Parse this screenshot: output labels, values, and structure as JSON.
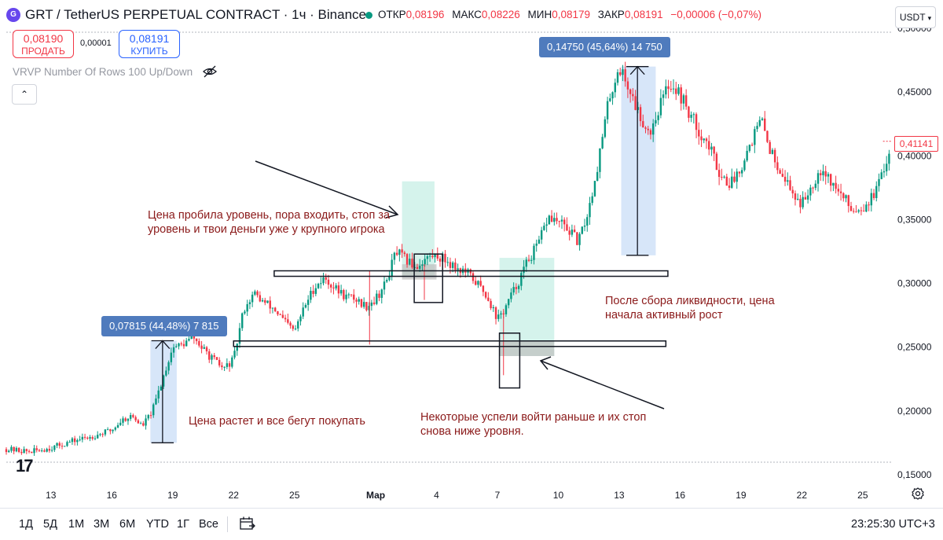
{
  "header": {
    "symbol_icon": "graph-token-icon",
    "title": "GRT / TetherUS PERPETUAL CONTRACT · 1ч · Binance",
    "ohlc": [
      {
        "label": "ОТКР",
        "value": "0,08196"
      },
      {
        "label": "МАКС",
        "value": "0,08226"
      },
      {
        "label": "МИН",
        "value": "0,08179"
      },
      {
        "label": "ЗАКР",
        "value": "0,08191"
      }
    ],
    "change": "−0,00006 (−0,07%)",
    "currency": "USDT"
  },
  "trade": {
    "sell_price": "0,08190",
    "sell_label": "ПРОДАТЬ",
    "spread": "0,00001",
    "buy_price": "0,08191",
    "buy_label": "КУПИТЬ"
  },
  "indicator": {
    "label": "VRVP Number Of Rows 100 Up/Down"
  },
  "annotations": {
    "a1": "Цена пробила уровень, пора входить, стоп за уровень и твои деньги уже у крупного игрока",
    "a2": "После сбора ликвидности, цена начала активный рост",
    "a3": "Цена растет и все бегут покупать",
    "a4": "Некоторые успели войти раньше и их стоп снова ниже уровня."
  },
  "measurements": {
    "m1": "0,07815 (44,48%) 7 815",
    "m2": "0,14750 (45,64%) 14 750"
  },
  "current_price": "0,41141",
  "bottom": {
    "timeframes": [
      "1Д",
      "5Д",
      "1М",
      "3М",
      "6М",
      "YTD",
      "1Г",
      "Все"
    ],
    "clock": "23:25:30 UTC+3"
  },
  "colors": {
    "up": "#089981",
    "down": "#f23645",
    "annotation": "#8b1a1a",
    "measure": "#4f7bbd"
  },
  "chart_data": {
    "type": "candlestick",
    "interval": "1ч",
    "y_axis": {
      "ticks": [
        "0,50000",
        "0,45000",
        "0,40000",
        "0,35000",
        "0,30000",
        "0,25000",
        "0,20000",
        "0,15000"
      ],
      "tick_values": [
        0.5,
        0.45,
        0.4,
        0.35,
        0.3,
        0.25,
        0.2,
        0.15
      ],
      "range": [
        0.145,
        0.5
      ]
    },
    "x_axis": {
      "ticks": [
        "13",
        "16",
        "19",
        "22",
        "25",
        "Мар",
        "4",
        "7",
        "10",
        "13",
        "16",
        "19",
        "22",
        "25"
      ],
      "tick_days": [
        13,
        16,
        19,
        22,
        25,
        29,
        32,
        35,
        38,
        41,
        44,
        47,
        50,
        53
      ],
      "range_days": [
        10.8,
        54.4
      ]
    },
    "approx_close_path": [
      [
        10.8,
        0.17
      ],
      [
        12,
        0.168
      ],
      [
        13,
        0.171
      ],
      [
        14,
        0.176
      ],
      [
        15,
        0.18
      ],
      [
        16,
        0.185
      ],
      [
        16.5,
        0.193
      ],
      [
        17,
        0.196
      ],
      [
        17.5,
        0.188
      ],
      [
        18,
        0.2
      ],
      [
        18.5,
        0.225
      ],
      [
        19,
        0.25
      ],
      [
        19.5,
        0.252
      ],
      [
        20,
        0.258
      ],
      [
        20.5,
        0.248
      ],
      [
        21,
        0.24
      ],
      [
        21.5,
        0.233
      ],
      [
        22,
        0.24
      ],
      [
        22.5,
        0.28
      ],
      [
        23,
        0.292
      ],
      [
        23.5,
        0.285
      ],
      [
        24,
        0.28
      ],
      [
        24.5,
        0.27
      ],
      [
        25,
        0.262
      ],
      [
        25.5,
        0.282
      ],
      [
        26,
        0.298
      ],
      [
        26.5,
        0.304
      ],
      [
        27,
        0.296
      ],
      [
        27.5,
        0.29
      ],
      [
        28,
        0.288
      ],
      [
        28.5,
        0.282
      ],
      [
        29,
        0.288
      ],
      [
        29.5,
        0.3
      ],
      [
        30,
        0.325
      ],
      [
        30.5,
        0.318
      ],
      [
        31,
        0.313
      ],
      [
        31.5,
        0.32
      ],
      [
        32,
        0.322
      ],
      [
        32.5,
        0.318
      ],
      [
        33,
        0.312
      ],
      [
        33.5,
        0.308
      ],
      [
        34,
        0.3
      ],
      [
        34.5,
        0.29
      ],
      [
        35,
        0.272
      ],
      [
        35.3,
        0.278
      ],
      [
        35.6,
        0.288
      ],
      [
        36,
        0.3
      ],
      [
        36.5,
        0.318
      ],
      [
        37,
        0.33
      ],
      [
        37.5,
        0.352
      ],
      [
        38,
        0.348
      ],
      [
        38.5,
        0.342
      ],
      [
        39,
        0.332
      ],
      [
        39.5,
        0.358
      ],
      [
        40,
        0.398
      ],
      [
        40.5,
        0.445
      ],
      [
        41,
        0.47
      ],
      [
        41.5,
        0.452
      ],
      [
        42,
        0.432
      ],
      [
        42.5,
        0.418
      ],
      [
        43,
        0.44
      ],
      [
        43.5,
        0.458
      ],
      [
        44,
        0.448
      ],
      [
        44.5,
        0.432
      ],
      [
        45,
        0.418
      ],
      [
        45.5,
        0.405
      ],
      [
        46,
        0.385
      ],
      [
        46.5,
        0.378
      ],
      [
        47,
        0.392
      ],
      [
        47.5,
        0.412
      ],
      [
        48,
        0.428
      ],
      [
        48.5,
        0.402
      ],
      [
        49,
        0.388
      ],
      [
        49.5,
        0.372
      ],
      [
        50,
        0.362
      ],
      [
        50.5,
        0.378
      ],
      [
        51,
        0.392
      ],
      [
        51.5,
        0.378
      ],
      [
        52,
        0.368
      ],
      [
        52.5,
        0.358
      ],
      [
        53,
        0.36
      ],
      [
        53.5,
        0.368
      ],
      [
        54,
        0.385
      ],
      [
        54.4,
        0.411
      ]
    ],
    "levels": [
      {
        "price": 0.308,
        "from_day": 24.0,
        "to_day": 43.4
      },
      {
        "price": 0.253,
        "from_day": 22.0,
        "to_day": 43.3
      }
    ],
    "measure_ranges": [
      {
        "from": 0.175,
        "to": 0.255,
        "day": 18.5,
        "label": "0,07815 (44,48%) 7 815"
      },
      {
        "from": 0.322,
        "to": 0.47,
        "day": 41.9,
        "label": "0,14750 (45,64%) 14 750"
      }
    ],
    "current_price": 0.41141
  }
}
